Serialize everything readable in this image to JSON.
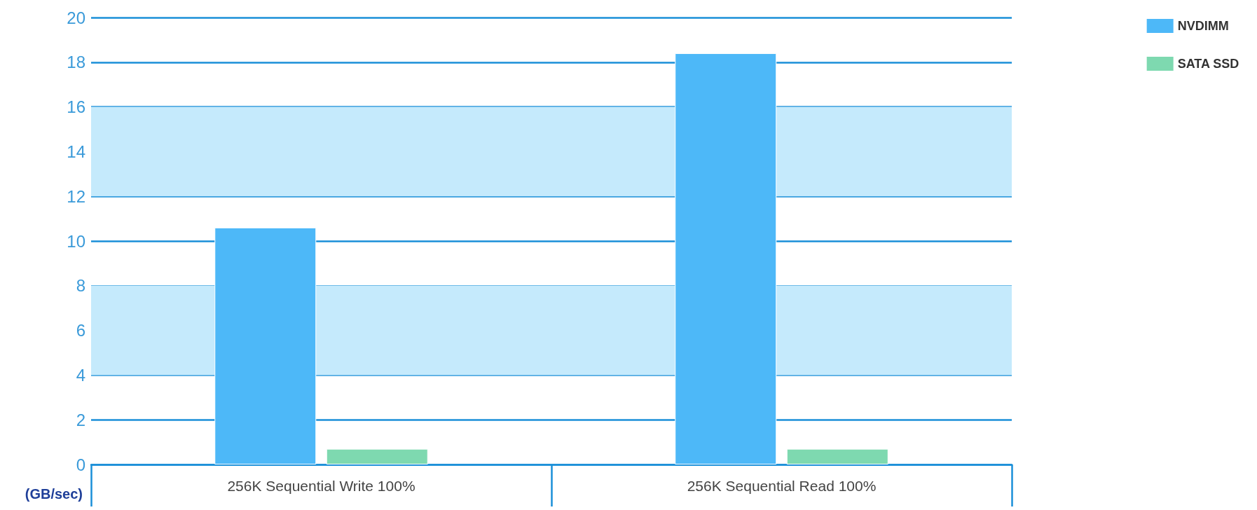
{
  "chart_data": {
    "type": "bar",
    "ylabel": "(GB/sec)",
    "categories": [
      "256K Sequential Write 100%",
      "256K Sequential Read 100%"
    ],
    "series": [
      {
        "name": "NVDIMM",
        "color": "#4db8f8",
        "values": [
          10.6,
          18.4
        ]
      },
      {
        "name": "SATA SSD",
        "color": "#7ed9b0",
        "values": [
          0.7,
          0.7
        ]
      }
    ],
    "ylim": [
      0,
      20
    ],
    "yticks": [
      0,
      2,
      4,
      6,
      8,
      10,
      12,
      14,
      16,
      18,
      20
    ],
    "grid": "y",
    "legend": "top right",
    "bands": [
      {
        "axis": "y",
        "from": 4,
        "to": 8,
        "color": "#c5eafc"
      },
      {
        "axis": "y",
        "from": 12,
        "to": 16,
        "color": "#c5eafc"
      }
    ]
  }
}
